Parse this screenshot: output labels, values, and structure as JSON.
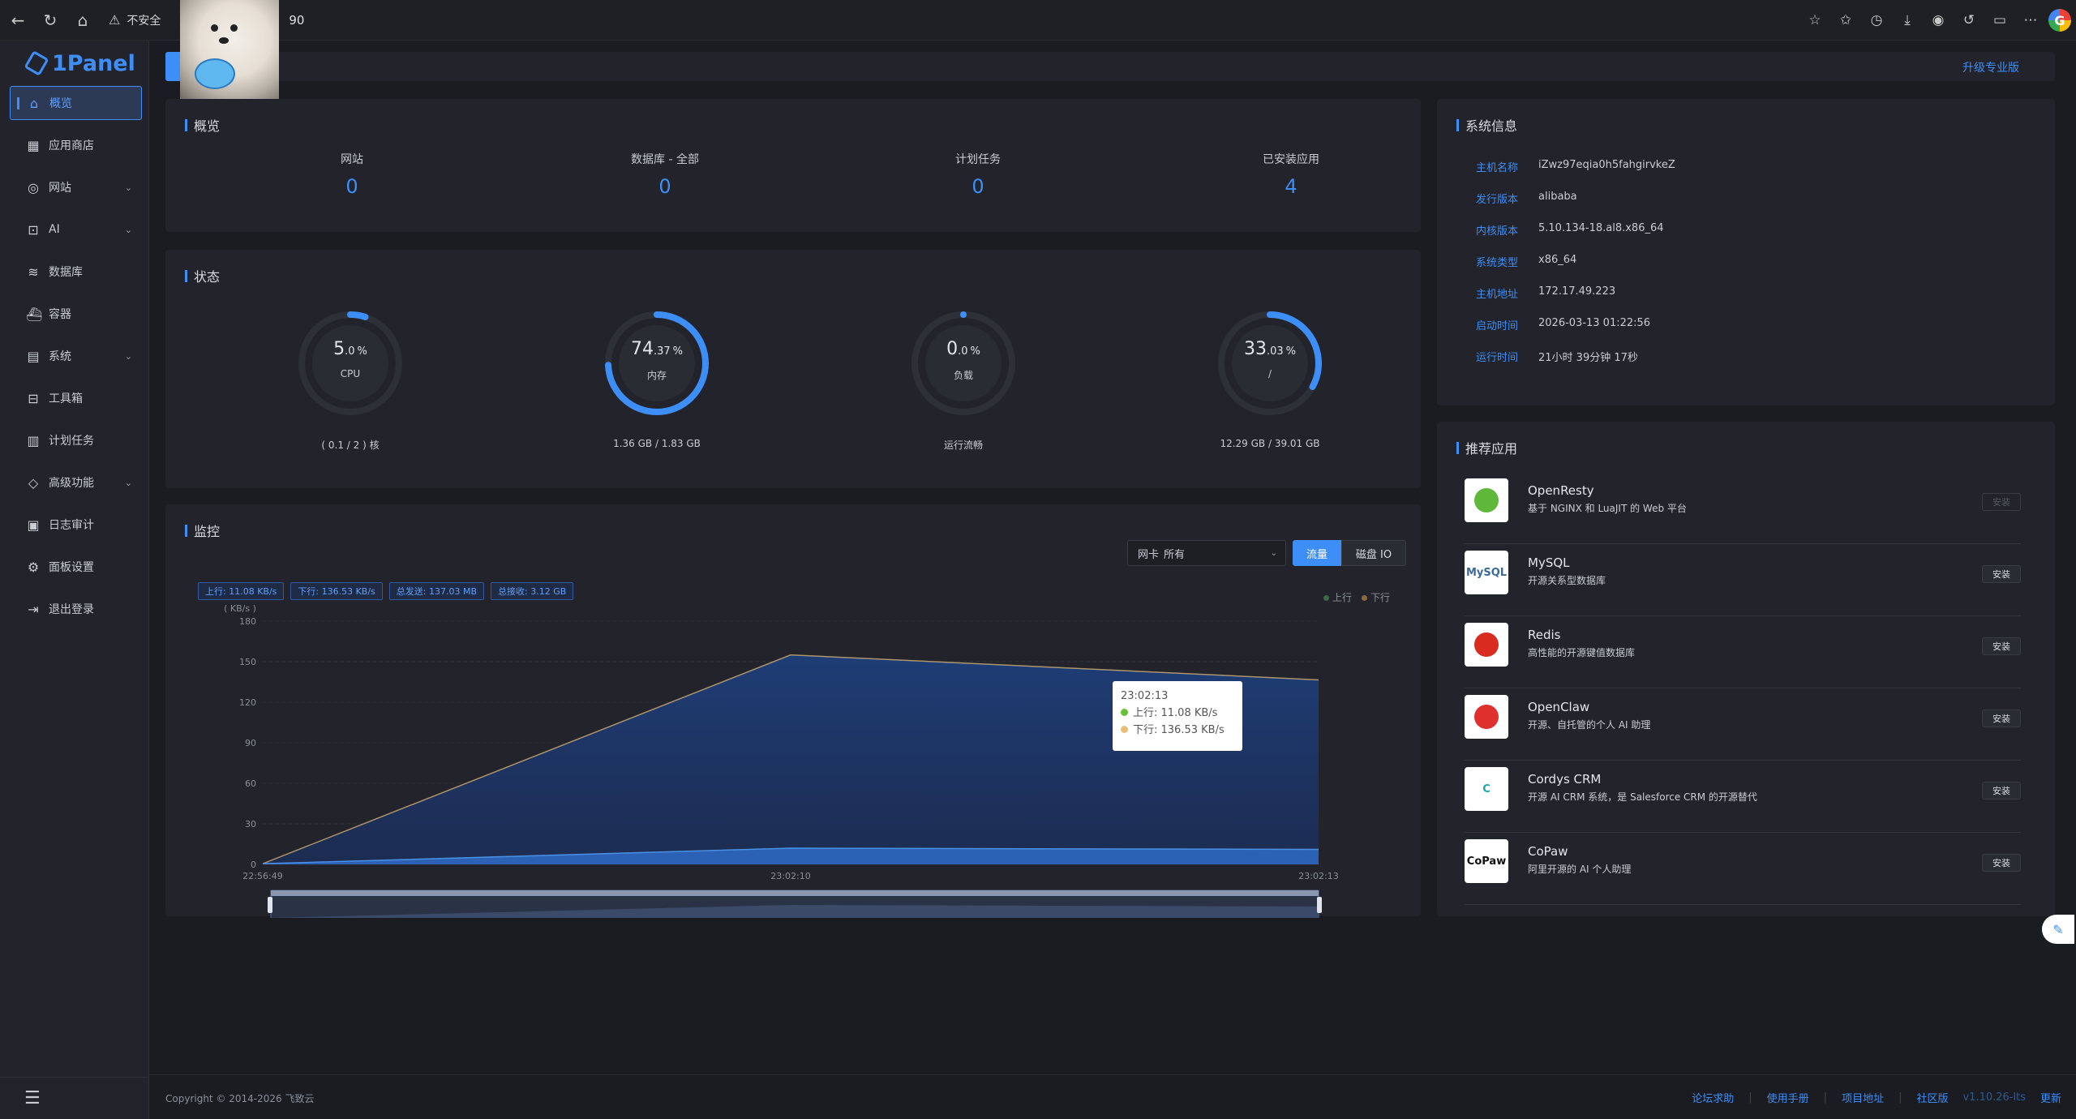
{
  "browser": {
    "security_label": "不安全",
    "url_tail": "90"
  },
  "sidebar": {
    "logo": "1Panel",
    "items": [
      {
        "label": "概览",
        "icon": "home-icon",
        "active": true
      },
      {
        "label": "应用商店",
        "icon": "grid-icon"
      },
      {
        "label": "网站",
        "icon": "globe-icon",
        "expandable": true
      },
      {
        "label": "AI",
        "icon": "robot-icon",
        "expandable": true
      },
      {
        "label": "数据库",
        "icon": "database-icon"
      },
      {
        "label": "容器",
        "icon": "container-icon"
      },
      {
        "label": "系统",
        "icon": "system-icon",
        "expandable": true
      },
      {
        "label": "工具箱",
        "icon": "toolbox-icon"
      },
      {
        "label": "计划任务",
        "icon": "calendar-icon"
      },
      {
        "label": "高级功能",
        "icon": "diamond-icon",
        "expandable": true
      },
      {
        "label": "日志审计",
        "icon": "log-icon"
      },
      {
        "label": "面板设置",
        "icon": "gear-icon"
      },
      {
        "label": "退出登录",
        "icon": "logout-icon"
      }
    ]
  },
  "top": {
    "pro_link": "升级专业版"
  },
  "overview": {
    "title": "概览",
    "items": [
      {
        "label": "网站",
        "value": "0"
      },
      {
        "label": "数据库 - 全部",
        "value": "0"
      },
      {
        "label": "计划任务",
        "value": "0"
      },
      {
        "label": "已安装应用",
        "value": "4"
      }
    ]
  },
  "status": {
    "title": "状态",
    "gauges": [
      {
        "int": "5",
        "dec": ".0",
        "unit": "%",
        "label": "CPU",
        "sub": "( 0.1 / 2 ) 核",
        "percent": 5.0
      },
      {
        "int": "74",
        "dec": ".37",
        "unit": "%",
        "label": "内存",
        "sub": "1.36 GB / 1.83 GB",
        "percent": 74.37
      },
      {
        "int": "0",
        "dec": ".0",
        "unit": "%",
        "label": "负载",
        "sub": "运行流畅",
        "percent": 0.0
      },
      {
        "int": "33",
        "dec": ".03",
        "unit": "%",
        "label": "/",
        "sub": "12.29 GB / 39.01 GB",
        "percent": 33.03
      }
    ]
  },
  "monitor": {
    "title": "监控",
    "nic_prefix": "网卡",
    "nic_value": "所有",
    "tab_traffic": "流量",
    "tab_disk": "磁盘 IO",
    "tags": [
      "上行: 11.08 KB/s",
      "下行: 136.53 KB/s",
      "总发送: 137.03 MB",
      "总接收: 3.12 GB"
    ],
    "legend_up": "上行",
    "legend_down": "下行",
    "tooltip": {
      "time": "23:02:13",
      "up": "上行:  11.08 KB/s",
      "down": "下行:  136.53 KB/s"
    }
  },
  "chart_data": {
    "type": "area",
    "ylabel": "( KB/s )",
    "ylim": [
      0,
      180
    ],
    "yticks": [
      0,
      30,
      60,
      90,
      120,
      150,
      180
    ],
    "x": [
      "22:56:49",
      "23:02:10",
      "23:02:13"
    ],
    "series": [
      {
        "name": "上行",
        "values": [
          0.5,
          12,
          11.08
        ],
        "color": "#4a90e2"
      },
      {
        "name": "下行",
        "values": [
          0.5,
          155,
          136.53
        ],
        "color": "#e6c07b"
      }
    ]
  },
  "sysinfo": {
    "title": "系统信息",
    "rows": [
      {
        "k": "主机名称",
        "v": "iZwz97eqia0h5fahgirvkeZ"
      },
      {
        "k": "发行版本",
        "v": "alibaba"
      },
      {
        "k": "内核版本",
        "v": "5.10.134-18.al8.x86_64"
      },
      {
        "k": "系统类型",
        "v": "x86_64"
      },
      {
        "k": "主机地址",
        "v": "172.17.49.223"
      },
      {
        "k": "启动时间",
        "v": "2026-03-13 01:22:56"
      },
      {
        "k": "运行时间",
        "v": "21小时 39分钟 17秒"
      }
    ]
  },
  "apps": {
    "title": "推荐应用",
    "items": [
      {
        "name": "OpenResty",
        "desc": "基于 NGINX 和 LuaJIT 的 Web 平台",
        "btn": "安装",
        "disabled": true,
        "icon_text": "",
        "icon_color": "#5fb83a"
      },
      {
        "name": "MySQL",
        "desc": "开源关系型数据库",
        "btn": "安装",
        "disabled": false,
        "icon_text": "MySQL",
        "icon_color": "#3b6a98"
      },
      {
        "name": "Redis",
        "desc": "高性能的开源键值数据库",
        "btn": "安装",
        "disabled": false,
        "icon_text": "",
        "icon_color": "#d82c20"
      },
      {
        "name": "OpenClaw",
        "desc": "开源、自托管的个人 AI 助理",
        "btn": "安装",
        "disabled": false,
        "icon_text": "",
        "icon_color": "#e0302e"
      },
      {
        "name": "Cordys CRM",
        "desc": "开源 AI CRM 系统，是 Salesforce CRM 的开源替代",
        "btn": "安装",
        "disabled": false,
        "icon_text": "C",
        "icon_color": "#1aa8b8"
      },
      {
        "name": "CoPaw",
        "desc": "阿里开源的 AI 个人助理",
        "btn": "安装",
        "disabled": false,
        "icon_text": "CoPaw",
        "icon_color": "#111111"
      }
    ]
  },
  "footer": {
    "copyright": "Copyright © 2014-2026 飞致云",
    "links": [
      "论坛求助",
      "使用手册",
      "项目地址",
      "社区版"
    ],
    "version": "v1.10.26-lts",
    "update": "更新"
  }
}
